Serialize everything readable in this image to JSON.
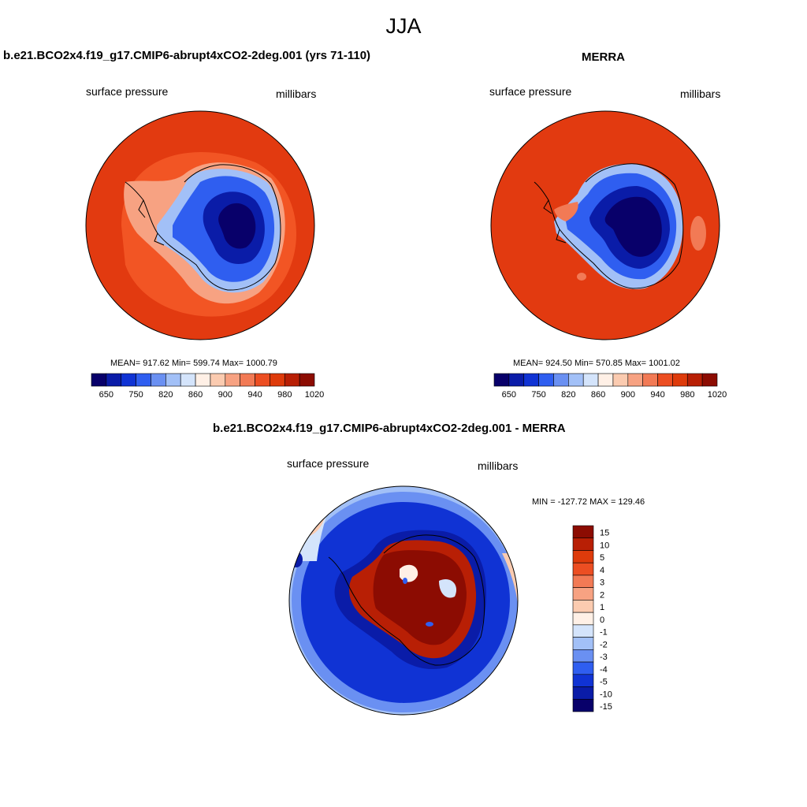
{
  "page": {
    "title": "JJA"
  },
  "panels": [
    {
      "title": "b.e21.BCO2x4.f19_g17.CMIP6-abrupt4xCO2-2deg.001 (yrs 71-110)",
      "left_label": "surface pressure",
      "right_label": "millibars",
      "stats": "MEAN= 917.62  Min= 599.74  Max= 1000.79"
    },
    {
      "title": "MERRA",
      "left_label": "surface pressure",
      "right_label": "millibars",
      "stats": "MEAN= 924.50  Min= 570.85  Max= 1001.02"
    },
    {
      "title": "b.e21.BCO2x4.f19_g17.CMIP6-abrupt4xCO2-2deg.001 - MERRA",
      "left_label": "surface pressure",
      "right_label": "millibars",
      "stats": "MIN = -127.72 MAX = 129.46"
    }
  ],
  "colorbars": {
    "absolute": {
      "colors": [
        "#08006a",
        "#0a1ca8",
        "#1033d4",
        "#2f5ef0",
        "#6a90f2",
        "#a2c0f7",
        "#d4e4fb",
        "#fff0e6",
        "#fbcbb0",
        "#f7a282",
        "#f27a55",
        "#ec4e22",
        "#de3b0b",
        "#b81f05",
        "#8c0c02"
      ],
      "tick_labels": [
        "650",
        "750",
        "820",
        "860",
        "900",
        "940",
        "980",
        "1020"
      ]
    },
    "difference": {
      "colors": [
        "#8c0c02",
        "#b81f05",
        "#de3b0b",
        "#ec4e22",
        "#f27a55",
        "#f7a282",
        "#fbcbb0",
        "#fff0e6",
        "#d4e4fb",
        "#a2c0f7",
        "#6a90f2",
        "#2f5ef0",
        "#1033d4",
        "#0a1ca8",
        "#08006a"
      ],
      "tick_labels": [
        "15",
        "10",
        "5",
        "4",
        "3",
        "2",
        "1",
        "0",
        "-1",
        "-2",
        "-3",
        "-4",
        "-5",
        "-10",
        "-15"
      ]
    }
  }
}
